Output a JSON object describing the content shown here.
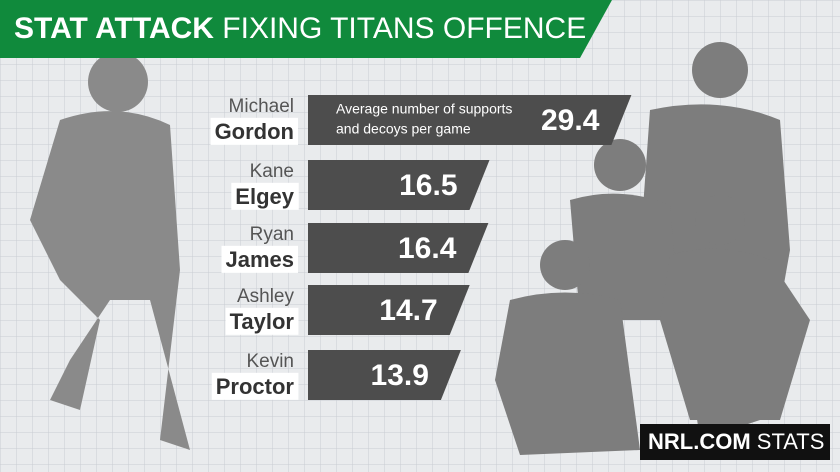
{
  "chart_data": {
    "type": "bar",
    "title": "STAT ATTACK",
    "subtitle": "FIXING TITANS OFFENCE",
    "annotation": [
      "Average number of supports",
      "and decoys per game"
    ],
    "categories": [
      {
        "first": "Michael",
        "last": "Gordon"
      },
      {
        "first": "Kane",
        "last": "Elgey"
      },
      {
        "first": "Ryan",
        "last": "James"
      },
      {
        "first": "Ashley",
        "last": "Taylor"
      },
      {
        "first": "Kevin",
        "last": "Proctor"
      }
    ],
    "values": [
      29.4,
      16.5,
      16.4,
      14.7,
      13.9
    ],
    "color": "#4d4d4d",
    "brand": {
      "name": "NRL.COM",
      "tag": "STATS"
    }
  }
}
